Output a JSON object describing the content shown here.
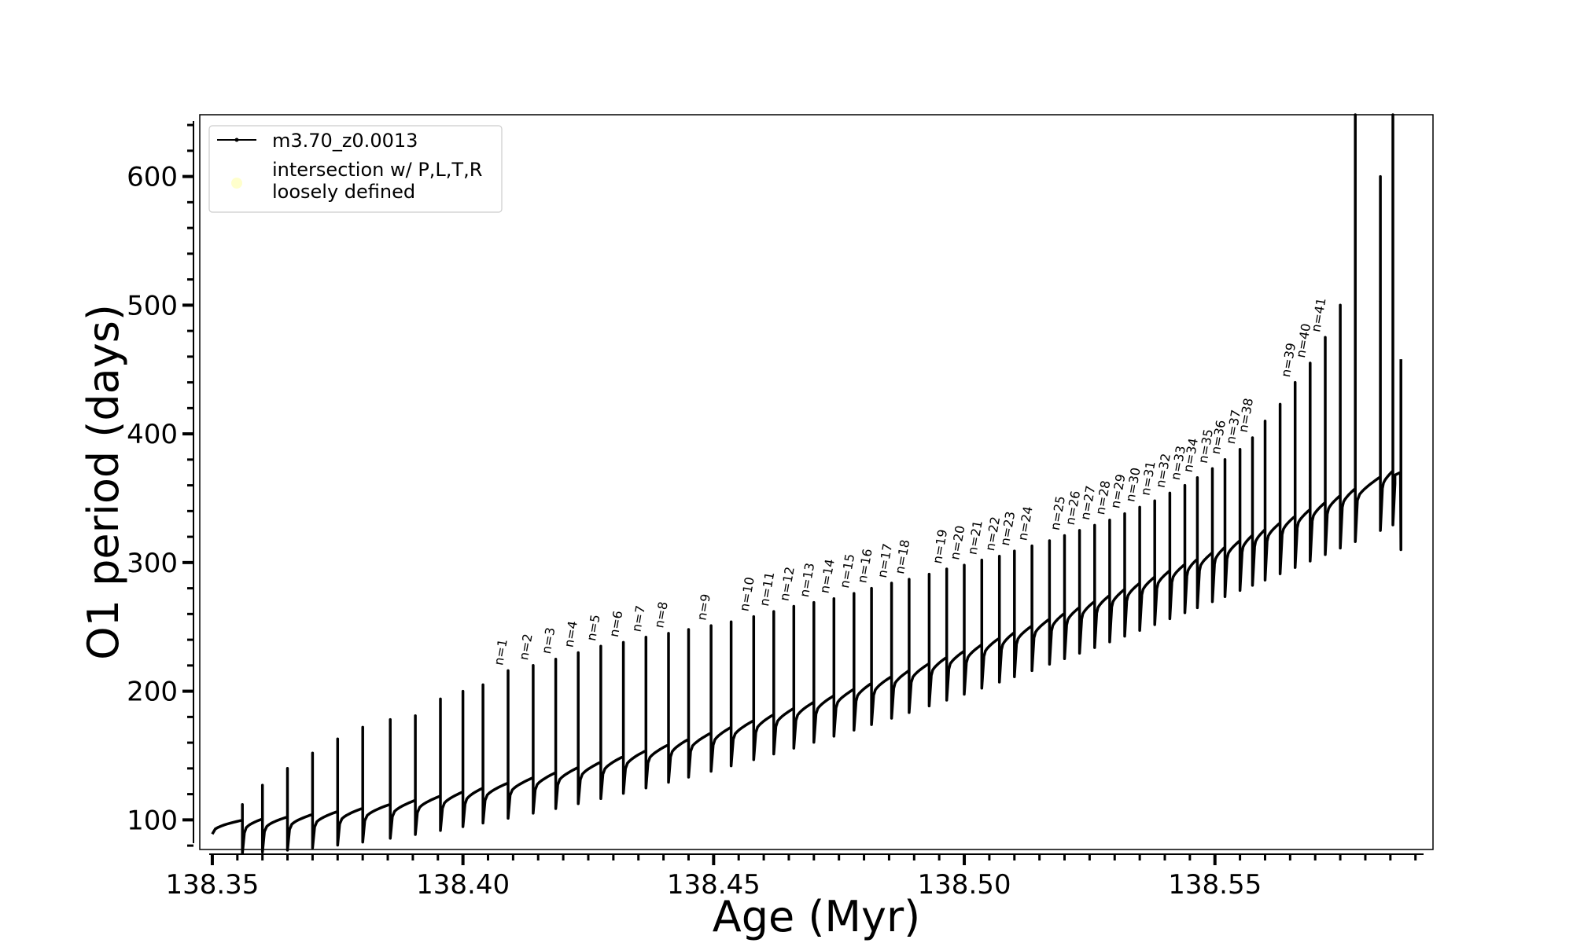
{
  "chart_data": {
    "type": "line",
    "title": "",
    "xlabel": "Age (Myr)",
    "ylabel": "O1 period (days)",
    "xlim": [
      138.3475,
      138.5935
    ],
    "ylim": [
      77,
      648
    ],
    "x_ticks": [
      138.35,
      138.4,
      138.45,
      138.5,
      138.55
    ],
    "x_tick_labels": [
      "138.35",
      "138.40",
      "138.45",
      "138.50",
      "138.55"
    ],
    "x_minor_step": 0.005,
    "y_ticks": [
      100,
      200,
      300,
      400,
      500,
      600
    ],
    "y_tick_labels": [
      "100",
      "200",
      "300",
      "400",
      "500",
      "600"
    ],
    "y_minor_step": 20,
    "grid": false,
    "legend_position": "top-left",
    "legend": [
      {
        "label": "m3.70_z0.0013",
        "color": "#000000",
        "marker": "line-with-dot"
      },
      {
        "label": "intersection w/ P,L,T,R\nloosely defined",
        "color": "#ffffcc",
        "marker": "circle"
      }
    ],
    "series": [
      {
        "name": "m3.70_z0.0013",
        "color": "#000000",
        "x_start": 138.35,
        "x_end": 138.587,
        "y_start": 95,
        "y_end": 370,
        "loops": [
          {
            "x": 138.356,
            "top": 112
          },
          {
            "x": 138.36,
            "top": 127
          },
          {
            "x": 138.365,
            "top": 140
          },
          {
            "x": 138.37,
            "top": 152
          },
          {
            "x": 138.375,
            "top": 163
          },
          {
            "x": 138.38,
            "top": 172
          },
          {
            "x": 138.3855,
            "top": 178
          },
          {
            "x": 138.3905,
            "top": 181
          },
          {
            "x": 138.3955,
            "top": 194
          },
          {
            "x": 138.4,
            "top": 200
          },
          {
            "x": 138.404,
            "top": 205
          },
          {
            "x": 138.409,
            "top": 216,
            "n": "n=1"
          },
          {
            "x": 138.414,
            "top": 220,
            "n": "n=2"
          },
          {
            "x": 138.4185,
            "top": 225,
            "n": "n=3"
          },
          {
            "x": 138.423,
            "top": 230,
            "n": "n=4"
          },
          {
            "x": 138.4275,
            "top": 235,
            "n": "n=5"
          },
          {
            "x": 138.432,
            "top": 238,
            "n": "n=6"
          },
          {
            "x": 138.4365,
            "top": 242,
            "n": "n=7"
          },
          {
            "x": 138.441,
            "top": 245,
            "n": "n=8"
          },
          {
            "x": 138.445,
            "top": 248
          },
          {
            "x": 138.4495,
            "top": 251,
            "n": "n=9"
          },
          {
            "x": 138.4535,
            "top": 254
          },
          {
            "x": 138.458,
            "top": 258,
            "n": "n=10"
          },
          {
            "x": 138.462,
            "top": 262,
            "n": "n=11"
          },
          {
            "x": 138.466,
            "top": 266,
            "n": "n=12"
          },
          {
            "x": 138.47,
            "top": 269,
            "n": "n=13"
          },
          {
            "x": 138.474,
            "top": 272,
            "n": "n=14"
          },
          {
            "x": 138.478,
            "top": 276,
            "n": "n=15"
          },
          {
            "x": 138.4815,
            "top": 280,
            "n": "n=16"
          },
          {
            "x": 138.4855,
            "top": 284,
            "n": "n=17"
          },
          {
            "x": 138.489,
            "top": 287,
            "n": "n=18"
          },
          {
            "x": 138.493,
            "top": 291
          },
          {
            "x": 138.4965,
            "top": 295,
            "n": "n=19"
          },
          {
            "x": 138.5,
            "top": 298,
            "n": "n=20"
          },
          {
            "x": 138.5035,
            "top": 302,
            "n": "n=21"
          },
          {
            "x": 138.507,
            "top": 305,
            "n": "n=22"
          },
          {
            "x": 138.51,
            "top": 309,
            "n": "n=23"
          },
          {
            "x": 138.5135,
            "top": 313,
            "n": "n=24"
          },
          {
            "x": 138.517,
            "top": 317
          },
          {
            "x": 138.52,
            "top": 321,
            "n": "n=25"
          },
          {
            "x": 138.523,
            "top": 325,
            "n": "n=26"
          },
          {
            "x": 138.526,
            "top": 329,
            "n": "n=27"
          },
          {
            "x": 138.529,
            "top": 333,
            "n": "n=28"
          },
          {
            "x": 138.532,
            "top": 338,
            "n": "n=29"
          },
          {
            "x": 138.535,
            "top": 343,
            "n": "n=30"
          },
          {
            "x": 138.538,
            "top": 348,
            "n": "n=31"
          },
          {
            "x": 138.541,
            "top": 354,
            "n": "n=32"
          },
          {
            "x": 138.544,
            "top": 360,
            "n": "n=33"
          },
          {
            "x": 138.5465,
            "top": 366,
            "n": "n=34"
          },
          {
            "x": 138.5495,
            "top": 373,
            "n": "n=35"
          },
          {
            "x": 138.552,
            "top": 380,
            "n": "n=36"
          },
          {
            "x": 138.555,
            "top": 388,
            "n": "n=37"
          },
          {
            "x": 138.5575,
            "top": 397,
            "n": "n=38"
          },
          {
            "x": 138.56,
            "top": 410
          },
          {
            "x": 138.563,
            "top": 423
          },
          {
            "x": 138.566,
            "top": 440,
            "n": "n=39"
          },
          {
            "x": 138.569,
            "top": 455,
            "n": "n=40"
          },
          {
            "x": 138.572,
            "top": 475,
            "n": "n=41"
          },
          {
            "x": 138.575,
            "top": 500
          },
          {
            "x": 138.578,
            "top": 648
          },
          {
            "x": 138.583,
            "top": 600
          },
          {
            "x": 138.5855,
            "top": 648
          }
        ]
      }
    ]
  }
}
